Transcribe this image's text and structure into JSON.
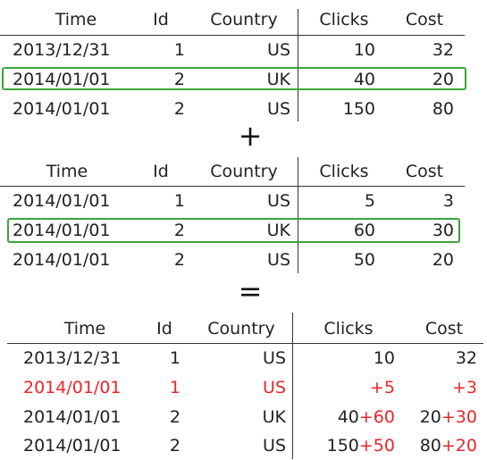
{
  "columns": [
    "Time",
    "Id",
    "Country",
    "Clicks",
    "Cost"
  ],
  "table1": [
    [
      "2013/12/31",
      "1",
      "US",
      "10",
      "32"
    ],
    [
      "2014/01/01",
      "2",
      "UK",
      "40",
      "20"
    ],
    [
      "2014/01/01",
      "2",
      "US",
      "150",
      "80"
    ]
  ],
  "plus": "+",
  "table2": [
    [
      "2014/01/01",
      "1",
      "US",
      "5",
      "3"
    ],
    [
      "2014/01/01",
      "2",
      "UK",
      "60",
      "30"
    ],
    [
      "2014/01/01",
      "2",
      "US",
      "50",
      "20"
    ]
  ],
  "equals": "=",
  "result": [
    {
      "time": "2013/12/31",
      "id": "1",
      "country": "US",
      "clicks_base": "10",
      "clicks_add": "",
      "cost_base": "32",
      "cost_add": ""
    },
    {
      "time": "2014/01/01",
      "id": "1",
      "country": "US",
      "clicks_base": "",
      "clicks_add": "+5",
      "cost_base": "",
      "cost_add": "+3"
    },
    {
      "time": "2014/01/01",
      "id": "2",
      "country": "UK",
      "clicks_base": "40",
      "clicks_add": "+60",
      "cost_base": "20",
      "cost_add": "+30"
    },
    {
      "time": "2014/01/01",
      "id": "2",
      "country": "US",
      "clicks_base": "150",
      "clicks_add": "+50",
      "cost_base": "80",
      "cost_add": "+20"
    }
  ],
  "colors": {
    "highlight_border": "#3aa53a",
    "new_row": "#e8262c",
    "added_value": "#e8262c"
  }
}
